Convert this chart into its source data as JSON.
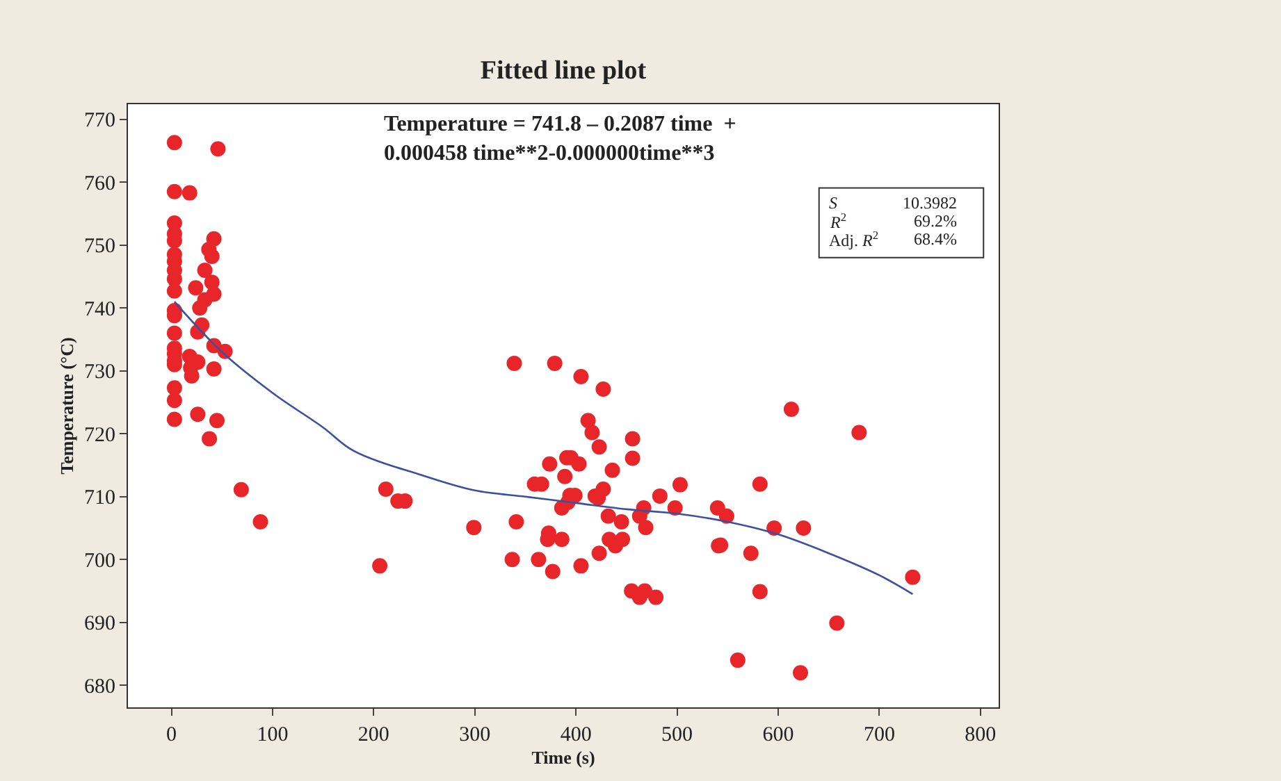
{
  "chart_data": {
    "type": "scatter",
    "title": "Fitted line plot",
    "xlabel": "Time (s)",
    "ylabel": "Temperature (°C)",
    "xlim": [
      -43,
      818
    ],
    "ylim": [
      676.5,
      772.4
    ],
    "xticks": [
      0,
      100,
      200,
      300,
      400,
      500,
      600,
      700,
      800
    ],
    "yticks": [
      680,
      690,
      700,
      710,
      720,
      730,
      740,
      750,
      760,
      770
    ],
    "grid": false,
    "annotations": [
      "Temperature = 741.8 – 0.2087 time  +\n0.000458 time**2-0.000000time**3",
      "S",
      "10.3982",
      "R$^{2}$",
      "69.2%",
      "Adj. R$^{2}$",
      "68.4%"
    ],
    "series": [
      {
        "marker": "circle",
        "color": "#e8262a",
        "x": [
          3,
          3,
          3,
          3,
          3,
          3,
          3,
          3,
          3,
          3,
          3,
          3,
          3,
          3,
          3,
          3,
          3,
          3,
          3,
          3,
          46,
          18,
          42,
          37,
          40,
          33,
          40,
          24,
          42,
          33,
          28,
          30,
          26,
          42,
          53,
          18,
          26,
          19,
          42,
          20,
          26,
          45,
          37.5,
          69,
          88,
          206,
          212,
          224,
          231,
          299,
          339,
          379,
          405,
          427,
          412,
          416,
          456,
          423,
          391,
          395,
          374,
          403,
          456,
          436,
          389,
          359,
          366,
          503,
          394,
          399,
          419,
          427,
          483,
          386,
          392,
          422,
          467,
          498,
          540,
          341,
          432,
          445,
          463,
          469,
          373,
          372,
          386,
          433,
          446,
          439,
          541,
          337,
          363,
          377,
          405,
          423,
          455,
          468,
          463,
          479,
          613,
          680,
          582,
          549,
          596,
          625,
          543,
          573,
          733,
          582,
          658,
          560,
          622
        ],
        "values": [
          766.3,
          758.5,
          753.5,
          751.8,
          750.7,
          748.5,
          747.4,
          746,
          744.6,
          742.7,
          739.6,
          738.8,
          736,
          733.6,
          732.7,
          731.6,
          731,
          727.3,
          725.3,
          722.3,
          765.3,
          758.3,
          751,
          749.3,
          748.2,
          746,
          744.1,
          743.2,
          742.2,
          741.3,
          740,
          737.3,
          736.2,
          734,
          733.1,
          732.3,
          731.4,
          730.5,
          730.3,
          729.2,
          723.1,
          722.1,
          719.2,
          711.1,
          706,
          699,
          711.2,
          709.3,
          709.3,
          705.1,
          731.2,
          731.2,
          729.1,
          727.1,
          722.1,
          720.2,
          719.2,
          717.9,
          716.2,
          716.2,
          715.2,
          715.2,
          716.1,
          714.2,
          713.2,
          712,
          712,
          711.9,
          710.2,
          710.2,
          710.1,
          711.2,
          710.1,
          708.2,
          709.1,
          709.8,
          708.2,
          708.2,
          708.2,
          706,
          706.9,
          706,
          706.9,
          705.1,
          704.2,
          703.2,
          703.2,
          703.2,
          703.2,
          702.2,
          702.2,
          700,
          700,
          698.1,
          699,
          701,
          695,
          695,
          694,
          694,
          723.9,
          720.2,
          712,
          706.9,
          705,
          705,
          702.3,
          701,
          697.2,
          694.9,
          689.9,
          684,
          682
        ]
      },
      {
        "type": "line",
        "color": "#3b50a0",
        "x": [
          3,
          50,
          100,
          150,
          180,
          250,
          300,
          350,
          400,
          450,
          500,
          550,
          600,
          650,
          700,
          733
        ],
        "values": [
          741,
          733,
          726.5,
          721,
          717.3,
          713.3,
          711,
          710,
          709,
          708,
          707.3,
          706,
          704,
          701,
          697.5,
          694.5
        ]
      }
    ]
  }
}
